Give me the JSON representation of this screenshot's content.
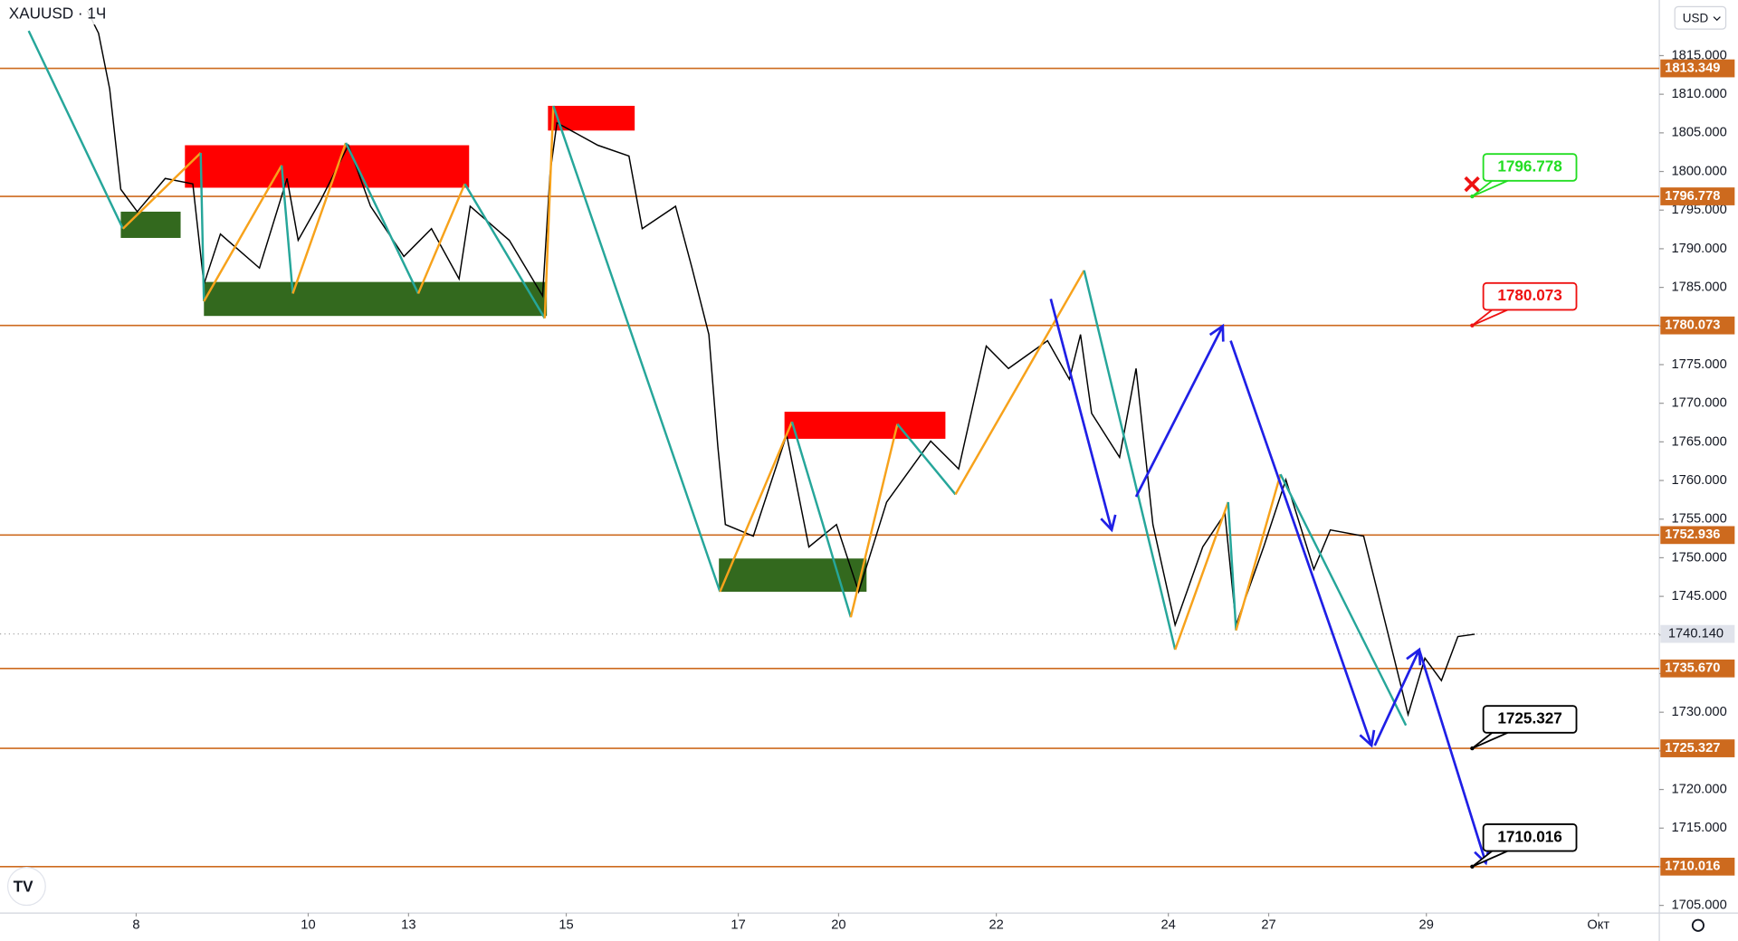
{
  "chart_data": {
    "type": "line",
    "title": "XAUUSD · 1Ч",
    "currency": "USD",
    "xlim": [
      -38,
      425
    ],
    "ylim": [
      1704,
      1822.2
    ],
    "xticks": [
      {
        "value": 0,
        "label": "8"
      },
      {
        "value": 48,
        "label": "10"
      },
      {
        "value": 76,
        "label": "13"
      },
      {
        "value": 120,
        "label": "15"
      },
      {
        "value": 168,
        "label": "17"
      },
      {
        "value": 196,
        "label": "20"
      },
      {
        "value": 240,
        "label": "22"
      },
      {
        "value": 288,
        "label": "24"
      },
      {
        "value": 316,
        "label": "27"
      },
      {
        "value": 360,
        "label": "29"
      },
      {
        "value": 408,
        "label": "Окт"
      }
    ],
    "yticks": [
      {
        "value": 1705,
        "label": "1705.000"
      },
      {
        "value": 1710,
        "label": "1710.000"
      },
      {
        "value": 1715,
        "label": "1715.000"
      },
      {
        "value": 1720,
        "label": "1720.000"
      },
      {
        "value": 1725,
        "label": "1725.000"
      },
      {
        "value": 1730,
        "label": "1730.000"
      },
      {
        "value": 1735,
        "label": "1735.000"
      },
      {
        "value": 1740,
        "label": "1740.000"
      },
      {
        "value": 1745,
        "label": "1745.000"
      },
      {
        "value": 1750,
        "label": "1750.000"
      },
      {
        "value": 1755,
        "label": "1755.000"
      },
      {
        "value": 1760,
        "label": "1760.000"
      },
      {
        "value": 1765,
        "label": "1765.000"
      },
      {
        "value": 1770,
        "label": "1770.000"
      },
      {
        "value": 1775,
        "label": "1775.000"
      },
      {
        "value": 1780,
        "label": "1780.000"
      },
      {
        "value": 1785,
        "label": "1785.000"
      },
      {
        "value": 1790,
        "label": "1790.000"
      },
      {
        "value": 1795,
        "label": "1795.000"
      },
      {
        "value": 1800,
        "label": "1800.000"
      },
      {
        "value": 1805,
        "label": "1805.000"
      },
      {
        "value": 1810,
        "label": "1810.000"
      },
      {
        "value": 1815,
        "label": "1815.000"
      }
    ],
    "series": [
      {
        "color": "#000000",
        "x": [
          -13.6,
          -10.5,
          -7.4,
          -4.3,
          0.3,
          8.1,
          15.8,
          18.9,
          23.5,
          34.4,
          42.1,
          45.2,
          51.4,
          59.2,
          65.4,
          74.7,
          82.4,
          90.1,
          93.2,
          104.1,
          113.4,
          115.5,
          117.4,
          128.8,
          137.5,
          141.2,
          150.5,
          155.1,
          159.8,
          162.3,
          164.4,
          172.2,
          181.5,
          187.7,
          195.4,
          201.6,
          209.4,
          221.7,
          229.5,
          237.2,
          243.4,
          254.3,
          260.4,
          263.5,
          266.6,
          274.4,
          279,
          283.7,
          289.9,
          297.6,
          303.8,
          306.9,
          314.6,
          320.8,
          328.6,
          333.2,
          342.5,
          348.7,
          354.9,
          359.6,
          364.2,
          368.8,
          373.5
        ],
        "values": [
          1820.8,
          1817.9,
          1810.7,
          1797.7,
          1794.8,
          1799.1,
          1798.4,
          1785.4,
          1791.9,
          1787.5,
          1799.1,
          1791.1,
          1796.2,
          1803.4,
          1795.5,
          1789,
          1792.6,
          1786.1,
          1795.5,
          1791.1,
          1783.9,
          1799.8,
          1806.3,
          1803.4,
          1802,
          1792.6,
          1795.5,
          1787.5,
          1778.9,
          1764.4,
          1754.3,
          1752.8,
          1765.9,
          1751.4,
          1754.3,
          1745.6,
          1757.2,
          1765.1,
          1761.5,
          1777.4,
          1774.5,
          1778.1,
          1773.1,
          1778.9,
          1768.7,
          1763,
          1774.5,
          1754.3,
          1741.3,
          1751.4,
          1755.7,
          1741.3,
          1751.4,
          1760.1,
          1748.5,
          1753.6,
          1752.8,
          1741.3,
          1729.7,
          1737,
          1734.1,
          1739.8,
          1740.1
        ]
      }
    ],
    "zones": [
      {
        "color": "#ff0000",
        "x": [
          13.6,
          92.9
        ],
        "y": [
          1797.9,
          1803.4
        ]
      },
      {
        "color": "#33691e",
        "x": [
          -4.3,
          12.4
        ],
        "y": [
          1791.4,
          1794.8
        ]
      },
      {
        "color": "#33691e",
        "x": [
          18.9,
          114.6
        ],
        "y": [
          1781.3,
          1785.7
        ]
      },
      {
        "color": "#ff0000",
        "x": [
          114.9,
          139.1
        ],
        "y": [
          1805.3,
          1808.5
        ]
      },
      {
        "color": "#ff0000",
        "x": [
          180.9,
          225.8
        ],
        "y": [
          1765.4,
          1768.9
        ]
      },
      {
        "color": "#33691e",
        "x": [
          162.6,
          203.8
        ],
        "y": [
          1745.6,
          1749.9
        ]
      }
    ],
    "zigzag": {
      "up_color": "#f7a21b",
      "down_color": "#26a69a",
      "x": [
        -30,
        -3.7,
        18,
        18.9,
        40.6,
        43.7,
        58.5,
        78.7,
        91.7,
        114,
        116.4,
        162.9,
        183,
        199.4,
        212.4,
        228.6,
        264.5,
        289.9,
        304.7,
        306.9,
        319.3,
        354.3
      ],
      "values": [
        1818.2,
        1792.6,
        1802.4,
        1783.2,
        1800.8,
        1784.2,
        1803.7,
        1784.2,
        1798.4,
        1781,
        1808.5,
        1745.6,
        1767.6,
        1742.3,
        1767.3,
        1758.2,
        1787.2,
        1738.1,
        1757.2,
        1740.6,
        1760.8,
        1728.3
      ]
    },
    "arrow_color": "#1f1fe6",
    "arrows": [
      {
        "x": [
          255.2,
          272.2
        ],
        "y": [
          1783.5,
          1753.6
        ]
      },
      {
        "x": [
          279,
          303.2
        ],
        "y": [
          1757.9,
          1780
        ]
      },
      {
        "x": [
          305.4,
          344.7
        ],
        "y": [
          1778.1,
          1725.7
        ]
      },
      {
        "x": [
          345.6,
          358
        ],
        "y": [
          1725.7,
          1738.1
        ]
      },
      {
        "x": [
          358,
          376.6
        ],
        "y": [
          1738.1,
          1710.5
        ]
      }
    ],
    "level_color": "#cd6a1e",
    "levels": [
      {
        "value": 1813.349,
        "label": "1813.349"
      },
      {
        "value": 1796.778,
        "label": "1796.778"
      },
      {
        "value": 1780.073,
        "label": "1780.073"
      },
      {
        "value": 1752.936,
        "label": "1752.936"
      },
      {
        "value": 1735.67,
        "label": "1735.670"
      },
      {
        "value": 1725.327,
        "label": "1725.327"
      },
      {
        "value": 1710.016,
        "label": "1710.016"
      }
    ],
    "last_price": {
      "value": 1740.14,
      "label": "1740.140"
    },
    "callout_x": 372.8,
    "callouts": [
      {
        "value": 1796.778,
        "label": "1796.778",
        "color": "#22dd22"
      },
      {
        "value": 1780.073,
        "label": "1780.073",
        "color": "#ee1111"
      },
      {
        "value": 1725.327,
        "label": "1725.327",
        "color": "#000000"
      },
      {
        "value": 1710.016,
        "label": "1710.016",
        "color": "#000000"
      }
    ]
  }
}
